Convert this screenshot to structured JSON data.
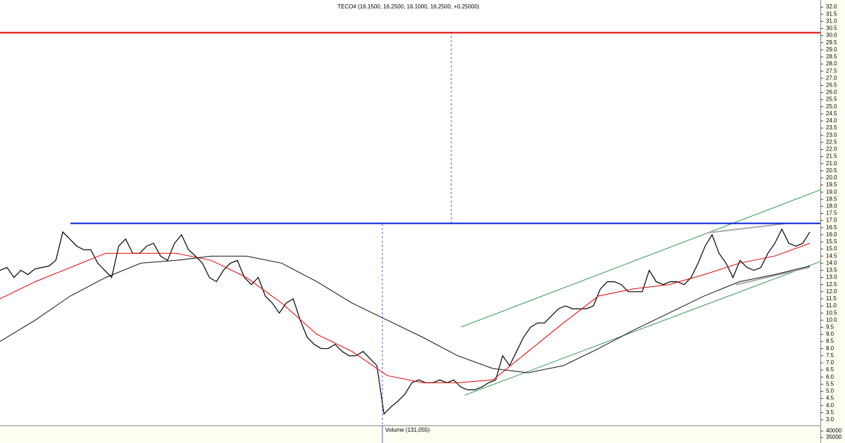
{
  "chart_data": {
    "type": "line",
    "title": "TECO# (16.1500, 16.2500, 16.1000, 16.2500, +0.25000)",
    "ylim": [
      2.6,
      32.5
    ],
    "yticks": [
      {
        "value": 32,
        "label": "32.0"
      },
      31.5,
      {
        "value": 31,
        "label": "31.0"
      },
      30.5,
      {
        "value": 30,
        "label": "30.0"
      },
      29.5,
      {
        "value": 29,
        "label": "29.0"
      },
      28.5,
      {
        "value": 28,
        "label": "28.0"
      },
      27.5,
      {
        "value": 27,
        "label": "27.0"
      },
      26.5,
      {
        "value": 26,
        "label": "26.0"
      },
      25.5,
      {
        "value": 25,
        "label": "25.0"
      },
      24.5,
      {
        "value": 24,
        "label": "24.0"
      },
      23.5,
      {
        "value": 23,
        "label": "23.0"
      },
      22.5,
      {
        "value": 22,
        "label": "22.0"
      },
      21.5,
      {
        "value": 21,
        "label": "21.0"
      },
      20.5,
      {
        "value": 20,
        "label": "20.0"
      },
      19.5,
      {
        "value": 19,
        "label": "19.0"
      },
      18.5,
      {
        "value": 18,
        "label": "18.0"
      },
      17.5,
      {
        "value": 17,
        "label": "17.0"
      },
      16.5,
      {
        "value": 16,
        "label": "16.0"
      },
      15.5,
      {
        "value": 15,
        "label": "15.0"
      },
      14.5,
      {
        "value": 14,
        "label": "14.0"
      },
      13.5,
      {
        "value": 13,
        "label": "13.0"
      },
      12.5,
      {
        "value": 12,
        "label": "12.0"
      },
      11.5,
      {
        "value": 11,
        "label": "11.0"
      },
      10.5,
      {
        "value": 10,
        "label": "10.0"
      },
      9.5,
      {
        "value": 9,
        "label": "9.0"
      },
      8.5,
      {
        "value": 8,
        "label": "8.0"
      },
      7.5,
      {
        "value": 7,
        "label": "7.0"
      },
      6.5,
      {
        "value": 6,
        "label": "6.0"
      },
      5.5,
      {
        "value": 5,
        "label": "5.0"
      },
      4.5,
      {
        "value": 4,
        "label": "4.0"
      },
      3.5,
      {
        "value": 3,
        "label": "3.0"
      }
    ],
    "series": [
      {
        "color": "#000000",
        "width": 1.2,
        "values": [
          13.5,
          13.7,
          13.0,
          13.5,
          13.2,
          13.6,
          13.7,
          13.8,
          14.2,
          16.2,
          15.7,
          15.2,
          14.95,
          14.95,
          14.0,
          13.5,
          13.0,
          15.2,
          15.7,
          14.7,
          14.7,
          15.2,
          15.4,
          14.5,
          14.2,
          15.4,
          16.0,
          14.95,
          14.5,
          14.0,
          13.0,
          12.7,
          13.5,
          14.0,
          14.2,
          13.0,
          12.5,
          13.0,
          11.7,
          11.2,
          10.5,
          11.2,
          11.5,
          10.0,
          8.8,
          8.3,
          8.0,
          8.0,
          8.3,
          7.8,
          7.5,
          7.5,
          7.8,
          7.3,
          6.8,
          3.4,
          3.9,
          4.3,
          4.8,
          5.6,
          5.8,
          5.6,
          5.6,
          5.8,
          5.6,
          5.8,
          5.3,
          5.1,
          5.1,
          5.3,
          5.6,
          5.8,
          7.5,
          6.8,
          7.8,
          8.8,
          9.5,
          9.8,
          9.8,
          10.3,
          10.8,
          11.0,
          10.8,
          10.8,
          10.8,
          11.0,
          12.2,
          12.7,
          12.7,
          12.5,
          12.0,
          12.0,
          12.0,
          13.5,
          12.7,
          12.5,
          12.7,
          12.7,
          12.5,
          13.0,
          14.0,
          15.2,
          16.0,
          14.7,
          14.0,
          13.0,
          14.2,
          13.7,
          13.5,
          13.7,
          14.7,
          15.4,
          16.4,
          15.4,
          15.2,
          15.4,
          16.2
        ]
      },
      {
        "color": "#e00000",
        "width": 1,
        "values": [
          11.5,
          12.7,
          13.7,
          14.7,
          14.7,
          14.7,
          14.2,
          13.0,
          11.2,
          9.0,
          7.8,
          6.1,
          5.6,
          5.6,
          5.8,
          7.8,
          9.8,
          11.7,
          12.2,
          12.5,
          13.2,
          14.0,
          14.5,
          15.4
        ]
      },
      {
        "color": "#111111",
        "width": 1,
        "values": [
          8.5,
          10.0,
          11.7,
          13.0,
          14.0,
          14.2,
          14.5,
          14.5,
          14.0,
          12.7,
          11.2,
          10.0,
          8.8,
          7.5,
          6.6,
          6.3,
          6.8,
          8.0,
          9.3,
          10.5,
          11.7,
          12.7,
          13.2,
          13.8
        ]
      }
    ],
    "hlines": [
      {
        "value": 30.2,
        "color": "#e00000"
      },
      {
        "value": 16.8,
        "color": "#0022dd"
      }
    ],
    "volume_label": "Volume (131,055)",
    "volume_ylim": [
      30600,
      44400
    ],
    "volume_yticks": [
      40000,
      35000
    ]
  }
}
